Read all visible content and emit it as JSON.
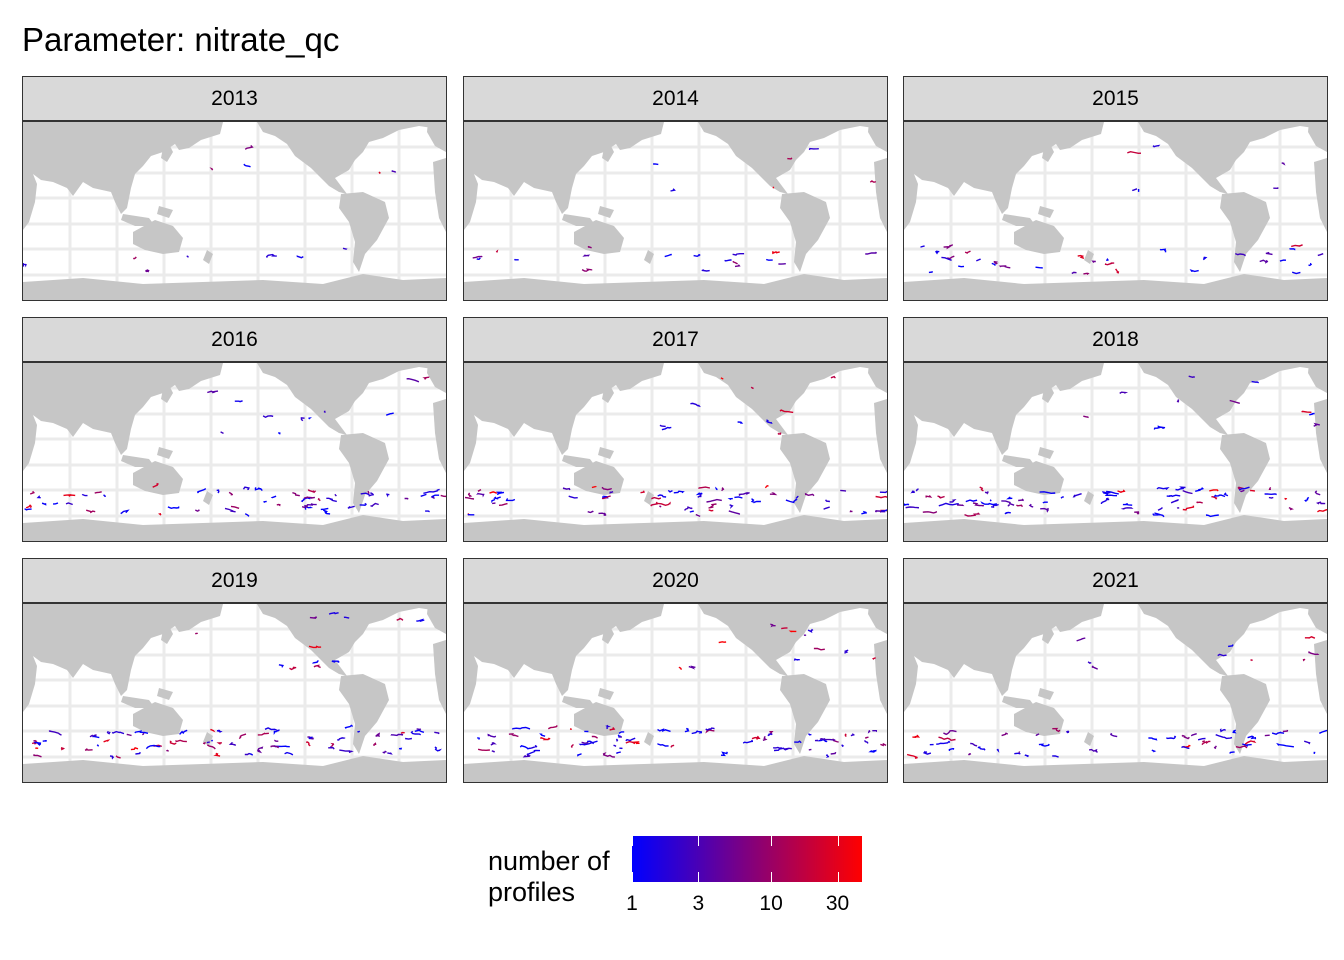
{
  "title": "Parameter: nitrate_qc",
  "panels": [
    {
      "year": "2013",
      "density": 0.25,
      "southern": 0.1
    },
    {
      "year": "2014",
      "density": 0.3,
      "southern": 0.25
    },
    {
      "year": "2015",
      "density": 0.3,
      "southern": 0.45
    },
    {
      "year": "2016",
      "density": 0.55,
      "southern": 0.8
    },
    {
      "year": "2017",
      "density": 0.5,
      "southern": 0.9
    },
    {
      "year": "2018",
      "density": 0.55,
      "southern": 1.0
    },
    {
      "year": "2019",
      "density": 0.6,
      "southern": 1.0
    },
    {
      "year": "2020",
      "density": 0.6,
      "southern": 1.0
    },
    {
      "year": "2021",
      "density": 0.45,
      "southern": 0.7
    }
  ],
  "legend": {
    "title_line1": "number of",
    "title_line2": "profiles",
    "scale": "log10",
    "range": [
      1,
      45
    ],
    "ticks": [
      {
        "value": 1,
        "label": "1"
      },
      {
        "value": 3,
        "label": "3"
      },
      {
        "value": 10,
        "label": "10"
      },
      {
        "value": 30,
        "label": "30"
      }
    ],
    "color_low": "#0000ff",
    "color_high": "#ff0000"
  },
  "colors": {
    "land": "#c6c6c6",
    "ocean": "#ffffff",
    "grid": "#ebebeb",
    "strip": "#d9d9d9"
  }
}
